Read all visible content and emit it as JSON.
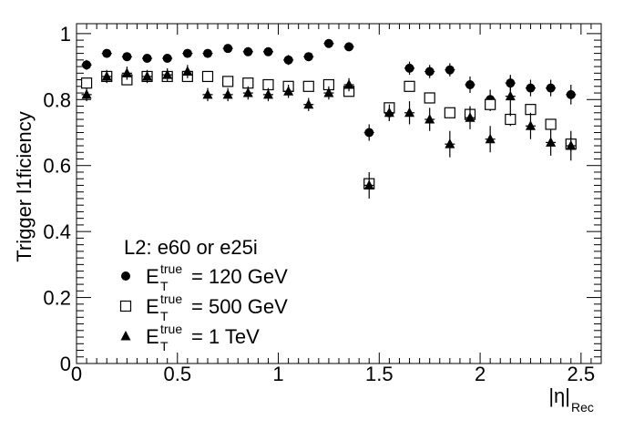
{
  "chart_data": {
    "type": "scatter",
    "title": "",
    "xlabel": "|η|",
    "xlabel_sub": "Rec",
    "ylabel": "Trigger l1ficiency",
    "xlim": [
      0,
      2.6
    ],
    "ylim": [
      0,
      1.03
    ],
    "xticks": [
      0,
      0.5,
      1,
      1.5,
      2,
      2.5
    ],
    "xtick_labels": [
      "0",
      "0.5",
      "1",
      "1.5",
      "2",
      "2.5"
    ],
    "yticks": [
      0,
      0.2,
      0.4,
      0.6,
      0.8,
      1
    ],
    "ytick_labels": [
      "0",
      "0.2",
      "0.4",
      "0.6",
      "0.8",
      "1"
    ],
    "grid": false,
    "bin_half_width": 0.025,
    "legend": {
      "header": "L2: e60 or e25i",
      "placement": "bottom-left"
    },
    "series": [
      {
        "name": "= 120 GeV",
        "label_main": "E",
        "label_sub": "T",
        "label_sup": "true",
        "marker": "circle-filled",
        "x": [
          0.05,
          0.15,
          0.25,
          0.35,
          0.45,
          0.55,
          0.65,
          0.75,
          0.85,
          0.95,
          1.05,
          1.15,
          1.25,
          1.35,
          1.45,
          1.55,
          1.65,
          1.75,
          1.85,
          1.95,
          2.05,
          2.15,
          2.25,
          2.35,
          2.45
        ],
        "y": [
          0.905,
          0.94,
          0.93,
          0.925,
          0.925,
          0.94,
          0.94,
          0.955,
          0.945,
          0.945,
          0.92,
          0.93,
          0.97,
          0.96,
          0.7,
          0.76,
          0.895,
          0.885,
          0.89,
          0.845,
          0.8,
          0.85,
          0.835,
          0.835,
          0.815
        ],
        "err": [
          0.015,
          0.01,
          0.01,
          0.01,
          0.01,
          0.01,
          0.01,
          0.01,
          0.01,
          0.01,
          0.015,
          0.01,
          0.01,
          0.01,
          0.025,
          0.025,
          0.02,
          0.02,
          0.02,
          0.025,
          0.03,
          0.025,
          0.025,
          0.025,
          0.03
        ]
      },
      {
        "name": "= 500 GeV",
        "label_main": "E",
        "label_sub": "T",
        "label_sup": "true",
        "marker": "square-open",
        "x": [
          0.05,
          0.15,
          0.25,
          0.35,
          0.45,
          0.55,
          0.65,
          0.75,
          0.85,
          0.95,
          1.05,
          1.15,
          1.25,
          1.35,
          1.45,
          1.55,
          1.65,
          1.75,
          1.85,
          1.95,
          2.05,
          2.15,
          2.25,
          2.35,
          2.45
        ],
        "y": [
          0.85,
          0.87,
          0.86,
          0.87,
          0.87,
          0.87,
          0.87,
          0.855,
          0.85,
          0.845,
          0.84,
          0.84,
          0.845,
          0.825,
          0.545,
          0.775,
          0.84,
          0.805,
          0.76,
          0.755,
          0.785,
          0.74,
          0.77,
          0.725,
          0.665
        ],
        "err": [
          0.01,
          0.01,
          0.01,
          0.01,
          0.01,
          0.01,
          0.01,
          0.01,
          0.01,
          0.01,
          0.01,
          0.01,
          0.01,
          0.01,
          0.01,
          0.015,
          0.015,
          0.015,
          0.015,
          0.02,
          0.02,
          0.02,
          0.015,
          0.015,
          0.02
        ]
      },
      {
        "name": "= 1 TeV",
        "label_main": "E",
        "label_sub": "T",
        "label_sup": "true",
        "marker": "triangle-filled",
        "x": [
          0.05,
          0.15,
          0.25,
          0.35,
          0.45,
          0.55,
          0.65,
          0.75,
          0.85,
          0.95,
          1.05,
          1.15,
          1.25,
          1.35,
          1.45,
          1.55,
          1.65,
          1.75,
          1.85,
          1.95,
          2.05,
          2.15,
          2.25,
          2.35,
          2.45
        ],
        "y": [
          0.815,
          0.87,
          0.88,
          0.87,
          0.875,
          0.885,
          0.815,
          0.815,
          0.82,
          0.815,
          0.825,
          0.785,
          0.82,
          0.845,
          0.54,
          0.76,
          0.76,
          0.74,
          0.665,
          0.745,
          0.68,
          0.81,
          0.72,
          0.67,
          0.66
        ],
        "err": [
          0.02,
          0.02,
          0.02,
          0.02,
          0.02,
          0.02,
          0.02,
          0.02,
          0.02,
          0.02,
          0.02,
          0.02,
          0.02,
          0.02,
          0.04,
          0.025,
          0.035,
          0.035,
          0.04,
          0.035,
          0.04,
          0.06,
          0.04,
          0.04,
          0.045
        ]
      }
    ]
  }
}
